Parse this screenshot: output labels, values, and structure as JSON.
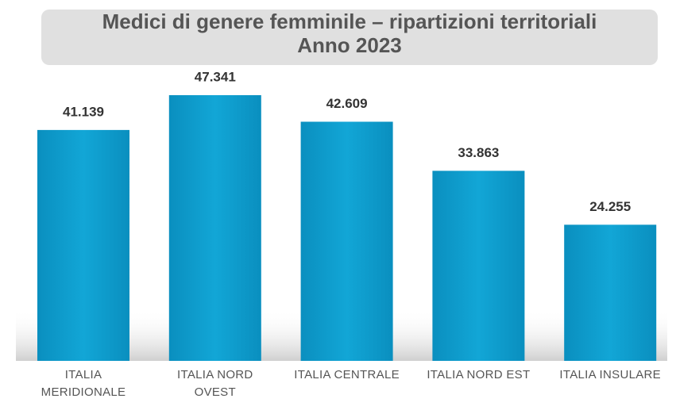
{
  "chart_data": {
    "type": "bar",
    "title": "Medici di genere femminile – ripartizioni territoriali",
    "subtitle": "Anno 2023",
    "categories": [
      "ITALIA MERIDIONALE",
      "ITALIA NORD OVEST",
      "ITALIA CENTRALE",
      "ITALIA NORD EST",
      "ITALIA INSULARE"
    ],
    "values": [
      41139,
      47341,
      42609,
      33863,
      24255
    ],
    "value_labels": [
      "41.139",
      "47.341",
      "42.609",
      "33.863",
      "24.255"
    ],
    "color": "#0b9fd0"
  }
}
